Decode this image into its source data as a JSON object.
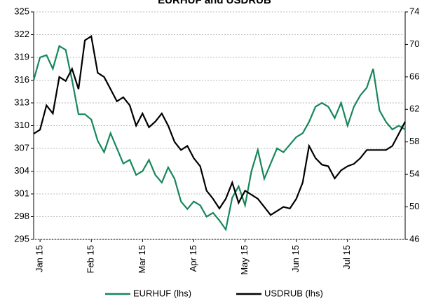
{
  "chart_data": {
    "type": "line",
    "title": "EURHUF and USDRUB",
    "categories": [
      null,
      "Jan 15",
      null,
      null,
      null,
      null,
      null,
      null,
      null,
      "Feb 15",
      null,
      null,
      null,
      null,
      null,
      null,
      null,
      "Mar 15",
      null,
      null,
      null,
      null,
      null,
      null,
      null,
      "Apr 15",
      null,
      null,
      null,
      null,
      null,
      null,
      null,
      "May 15",
      null,
      null,
      null,
      null,
      null,
      null,
      null,
      "Jun 15",
      null,
      null,
      null,
      null,
      null,
      null,
      null,
      "Jul 15",
      null,
      null,
      null,
      null,
      null,
      null,
      null,
      null,
      null
    ],
    "series": [
      {
        "name": "EURHUF (lhs)",
        "color": "#16875a",
        "axis": "y",
        "values": [
          316,
          319,
          319.3,
          317.5,
          320.5,
          320,
          316,
          311.5,
          311.5,
          310.8,
          308,
          306.5,
          309,
          307,
          305,
          305.5,
          303.5,
          304,
          305.5,
          303.5,
          302.5,
          304.5,
          303,
          300,
          299,
          300,
          299.5,
          298,
          298.5,
          297.5,
          296.3,
          300.5,
          302,
          299.5,
          304,
          306.8,
          303,
          305,
          307,
          306.5,
          307.5,
          308.5,
          309,
          310.5,
          312.5,
          313,
          312.5,
          311,
          313,
          310,
          312.5,
          314,
          315,
          317.5,
          312,
          310.5,
          309.5,
          310,
          309.5
        ]
      },
      {
        "name": "USDRUB (lhs)",
        "color": "#000000",
        "axis": "y2",
        "values": [
          59,
          59.5,
          62.5,
          61.5,
          66,
          65.5,
          67,
          64.5,
          70.5,
          71,
          66.5,
          66,
          64.5,
          63,
          63.5,
          62.5,
          60,
          61.5,
          59.8,
          60.5,
          61.5,
          60,
          58,
          57,
          57.5,
          56,
          55,
          52,
          51,
          49.8,
          51,
          53,
          50.5,
          52,
          51.5,
          51,
          50,
          49,
          49.5,
          50,
          49.8,
          51,
          53,
          57.5,
          56,
          55.2,
          55,
          53.5,
          54.5,
          55,
          55.3,
          56,
          57,
          57,
          57,
          57,
          57.5,
          59,
          60.5
        ]
      }
    ],
    "ylim": [
      295,
      325
    ],
    "yticks": [
      295,
      298,
      301,
      304,
      307,
      310,
      313,
      316,
      319,
      322,
      325
    ],
    "y2lim": [
      46,
      74
    ],
    "y2ticks": [
      46,
      50,
      54,
      58,
      62,
      66,
      70,
      74
    ],
    "grid": true,
    "legend": "bottom"
  }
}
